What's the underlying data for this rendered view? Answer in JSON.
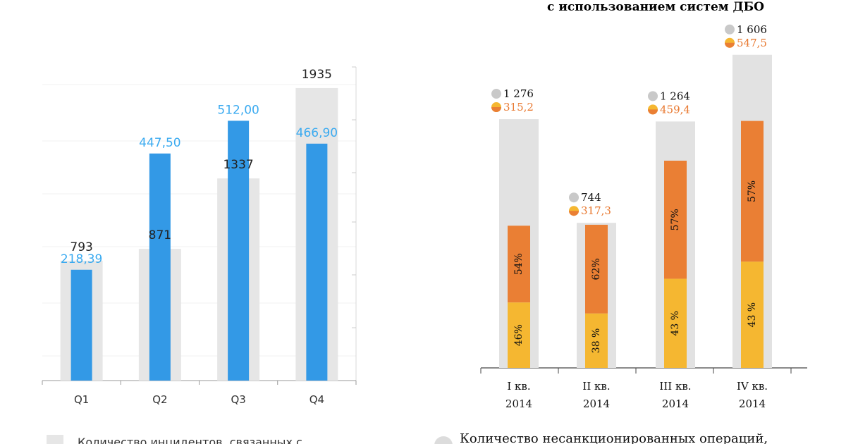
{
  "chart_data": [
    {
      "type": "bar",
      "categories": [
        "Q1",
        "Q2",
        "Q3",
        "Q4"
      ],
      "series": [
        {
          "values": [
            793,
            871,
            1337,
            1935
          ],
          "labels": [
            "793",
            "871",
            "1337",
            "1935"
          ],
          "color": "#e6e6e6"
        },
        {
          "values": [
            218.39,
            447.5,
            512.0,
            466.9
          ],
          "labels": [
            "218,39",
            "447,50",
            "512,00",
            "466,90"
          ],
          "color": "#3399e6"
        }
      ],
      "legend_text": "Количество инцидентов, связанных с",
      "grid": true
    },
    {
      "type": "bar",
      "title": "с использованием систем ДБО",
      "categories": [
        {
          "line1": "I кв.",
          "line2": "2014"
        },
        {
          "line1": "II кв.",
          "line2": "2014"
        },
        {
          "line1": "III кв.",
          "line2": "2014"
        },
        {
          "line1": "IV кв.",
          "line2": "2014"
        }
      ],
      "counts": {
        "values": [
          1276,
          744,
          1264,
          1606
        ],
        "labels": [
          "1 276",
          "744",
          "1 264",
          "1 606"
        ],
        "color": "#e2e2e2"
      },
      "sums": {
        "values": [
          315.2,
          317.3,
          459.4,
          547.5
        ],
        "labels": [
          "315,2",
          "317,3",
          "459,4",
          "547,5"
        ],
        "lower_share_labels": [
          "46%",
          "38 %",
          "43 %",
          "43 %"
        ],
        "upper_share_labels": [
          "54%",
          "62%",
          "57%",
          "57%"
        ],
        "lower_fraction": [
          0.46,
          0.38,
          0.43,
          0.43
        ],
        "lower_color": "#f5b731",
        "upper_color": "#ea7f34"
      },
      "legend_text": "Количество несанкционированных операций,"
    }
  ]
}
